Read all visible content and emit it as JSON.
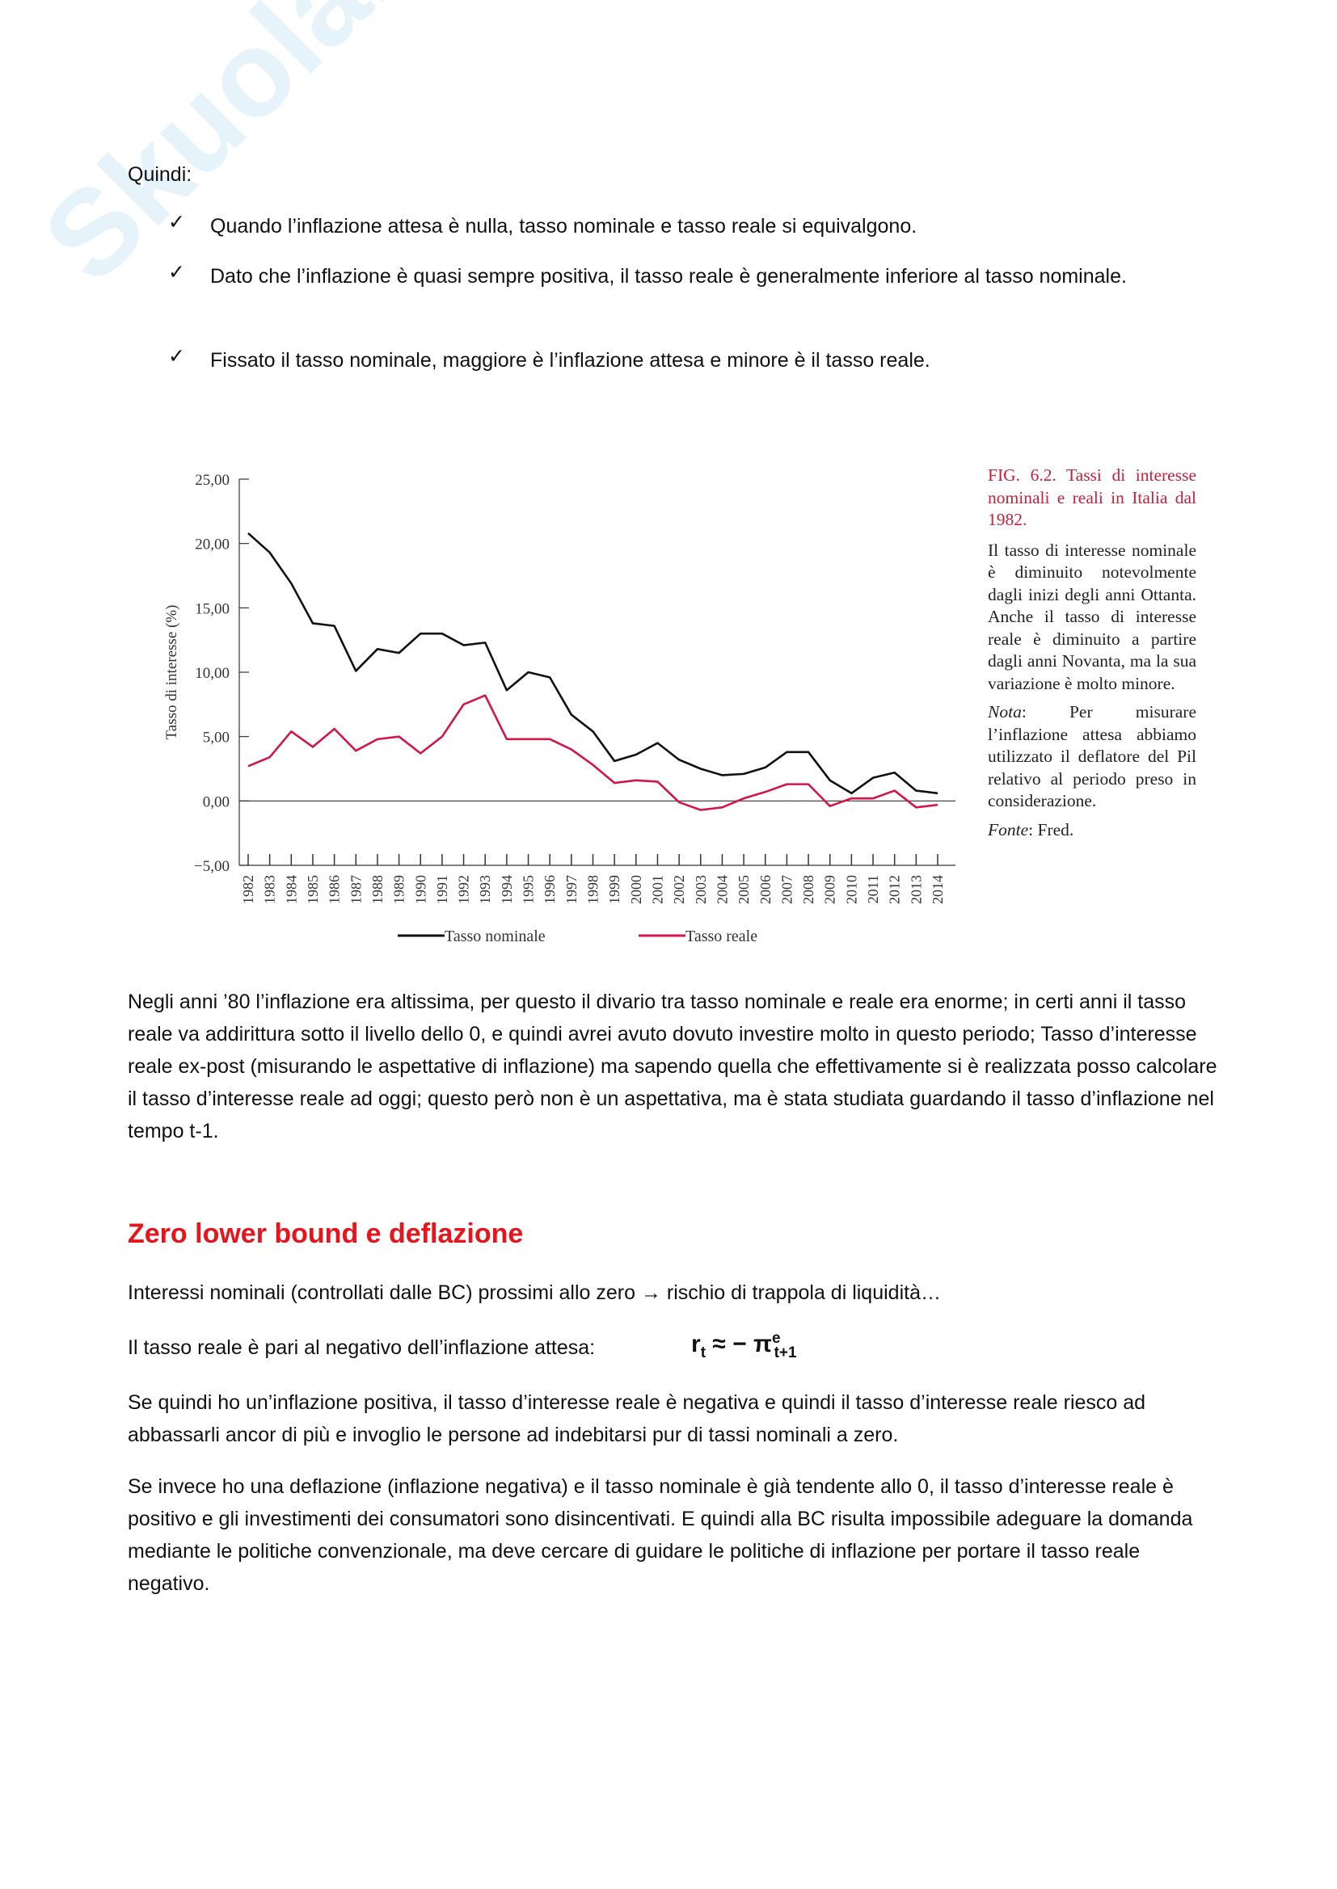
{
  "watermark": "Skuola.net",
  "intro": "Quindi:",
  "bullets": [
    {
      "icon": "check-icon",
      "mark": "✓",
      "text": "Quando l’inflazione attesa è nulla, tasso nominale e tasso reale si equivalgono."
    },
    {
      "icon": "check-icon",
      "mark": "✓",
      "text": "Dato che l’inflazione è quasi sempre positiva, il tasso reale è generalmente inferiore al tasso nominale."
    },
    {
      "icon": "check-icon",
      "mark": "✓",
      "text": "Fissato il tasso nominale, maggiore è l’inflazione attesa e minore è il tasso reale."
    }
  ],
  "figure_caption": {
    "title": "FIG. 6.2. Tassi di interesse nominali e reali in Italia dal 1982.",
    "body": "Il tasso di interesse nominale è diminuito notevolmente dagli inizi degli anni Ottanta. Anche il tasso di interesse reale è diminuito a partire dagli anni Novanta, ma la sua variazione è molto minore.",
    "nota_label": "Nota",
    "nota": ": Per misurare l’inflazione attesa abbiamo utilizzato il deflatore del Pil relativo al periodo preso in considerazione.",
    "fonte_label": "Fonte",
    "fonte": ": Fred."
  },
  "chart_data": {
    "type": "line",
    "title": "",
    "xlabel": "",
    "ylabel": "Tasso di interesse (%)",
    "ylim": [
      -5,
      25
    ],
    "yticks": [
      "−5,00",
      "0,00",
      "5,00",
      "10,00",
      "15,00",
      "20,00",
      "25,00"
    ],
    "ytick_values": [
      -5,
      0,
      5,
      10,
      15,
      20,
      25
    ],
    "x": [
      "1982",
      "1983",
      "1984",
      "1985",
      "1986",
      "1987",
      "1988",
      "1989",
      "1990",
      "1991",
      "1992",
      "1993",
      "1994",
      "1995",
      "1996",
      "1997",
      "1998",
      "1999",
      "2000",
      "2001",
      "2002",
      "2003",
      "2004",
      "2005",
      "2006",
      "2007",
      "2008",
      "2009",
      "2010",
      "2011",
      "2012",
      "2013",
      "2014"
    ],
    "legend_position": "bottom",
    "series": [
      {
        "name": "Tasso nominale",
        "color": "#111111",
        "values": [
          20.8,
          19.3,
          16.9,
          13.8,
          13.6,
          10.1,
          11.8,
          11.5,
          13.0,
          13.0,
          12.1,
          12.3,
          8.6,
          10.0,
          9.6,
          6.7,
          5.4,
          3.1,
          3.6,
          4.5,
          3.2,
          2.5,
          2.0,
          2.1,
          2.6,
          3.8,
          3.8,
          1.6,
          0.6,
          1.8,
          2.2,
          0.8,
          0.6
        ]
      },
      {
        "name": "Tasso reale",
        "color": "#d41548",
        "values": [
          2.7,
          3.4,
          5.4,
          4.2,
          5.6,
          3.9,
          4.8,
          5.0,
          3.7,
          5.0,
          7.5,
          8.2,
          4.8,
          4.8,
          4.8,
          4.0,
          2.8,
          1.4,
          1.6,
          1.5,
          -0.1,
          -0.7,
          -0.5,
          0.2,
          0.7,
          1.3,
          1.3,
          -0.4,
          0.2,
          0.2,
          0.8,
          -0.5,
          -0.3
        ]
      }
    ]
  },
  "paragraph1": "Negli anni ’80 l’inflazione era altissima, per questo il divario tra tasso nominale e reale era enorme; in certi anni il tasso reale va addirittura sotto il livello dello 0, e quindi avrei avuto dovuto investire molto in questo periodo; Tasso d’interesse reale ex-post (misurando le aspettative di inflazione) ma sapendo quella che effettivamente si è realizzata posso calcolare il tasso d’interesse reale ad oggi; questo però non è un aspettativa, ma è stata studiata guardando il tasso d’inflazione nel tempo t-1.",
  "section_heading": "Zero lower bound e deflazione",
  "line_zlb": "Interessi nominali (controllati dalle BC) prossimi allo zero → rischio di trappola di liquidità…",
  "line_formula_intro": "Il tasso reale è pari al negativo dell’inflazione attesa:",
  "formula": {
    "r": "r",
    "r_sub": "t",
    "op": " ≈ − ",
    "pi": "π",
    "pi_sup": "e",
    "pi_sub": "t+1"
  },
  "paragraph2": "Se quindi ho un’inflazione positiva, il tasso d’interesse reale è negativa e quindi il tasso d’interesse reale riesco ad abbassarli ancor di più e invoglio le persone ad indebitarsi pur di tassi nominali a zero.",
  "paragraph3": "Se invece ho una deflazione (inflazione negativa) e il tasso nominale è già tendente allo 0, il tasso d’interesse reale è positivo e gli investimenti dei consumatori sono disincentivati. E quindi alla BC risulta impossibile adeguare la domanda mediante le politiche convenzionale, ma deve cercare di guidare le politiche di inflazione per portare il tasso reale negativo."
}
